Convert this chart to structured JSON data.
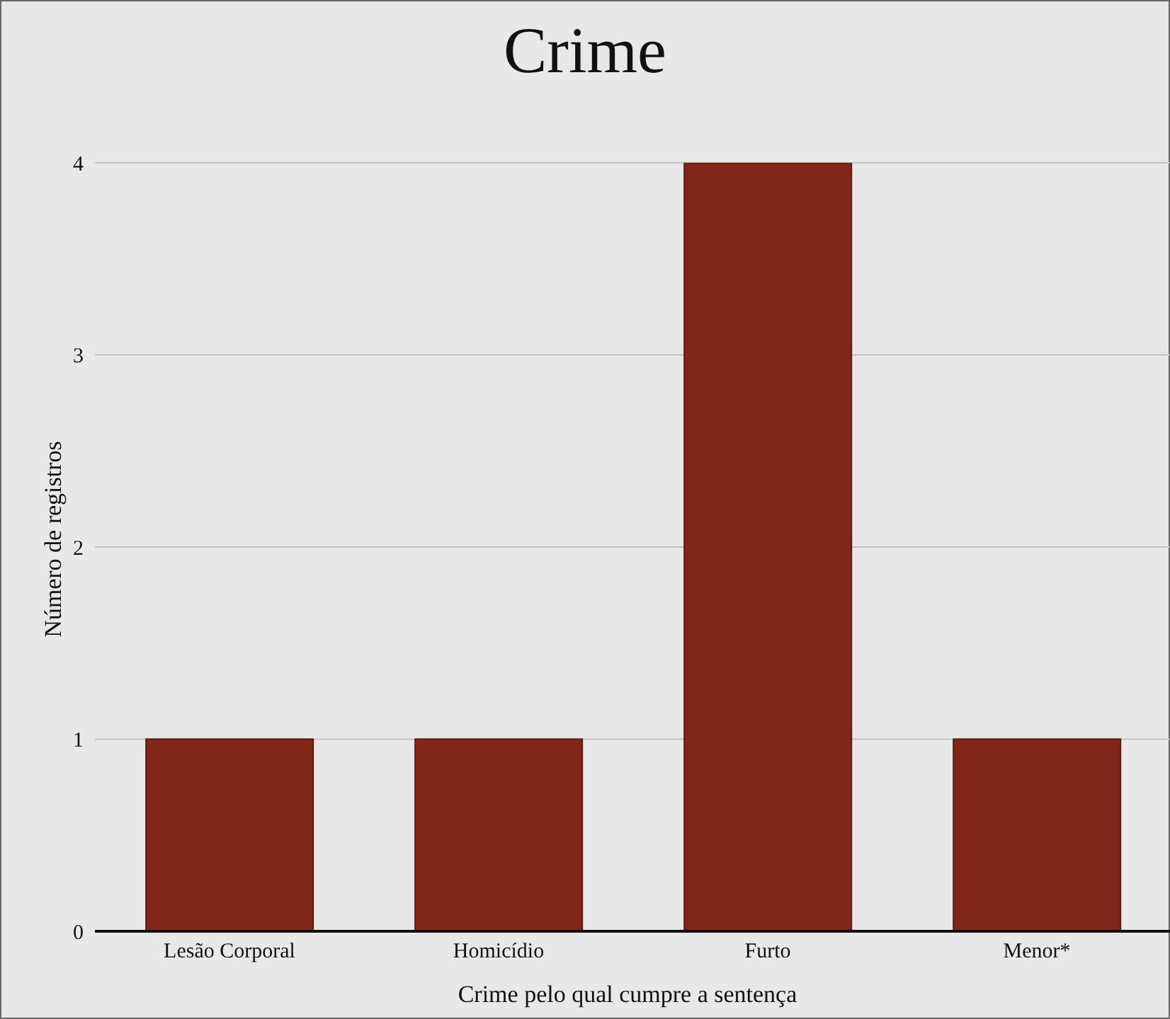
{
  "chart_data": {
    "type": "bar",
    "title": "Crime",
    "xlabel": "Crime pelo qual cumpre a sentença",
    "ylabel": "Número de registros",
    "categories": [
      "Lesão Corporal",
      "Homicídio",
      "Furto",
      "Menor*"
    ],
    "values": [
      1,
      1,
      4,
      1
    ],
    "color": "#80271a",
    "ylim": [
      0,
      4
    ],
    "yticks": [
      0,
      1,
      2,
      3,
      4
    ],
    "grid": "y"
  }
}
